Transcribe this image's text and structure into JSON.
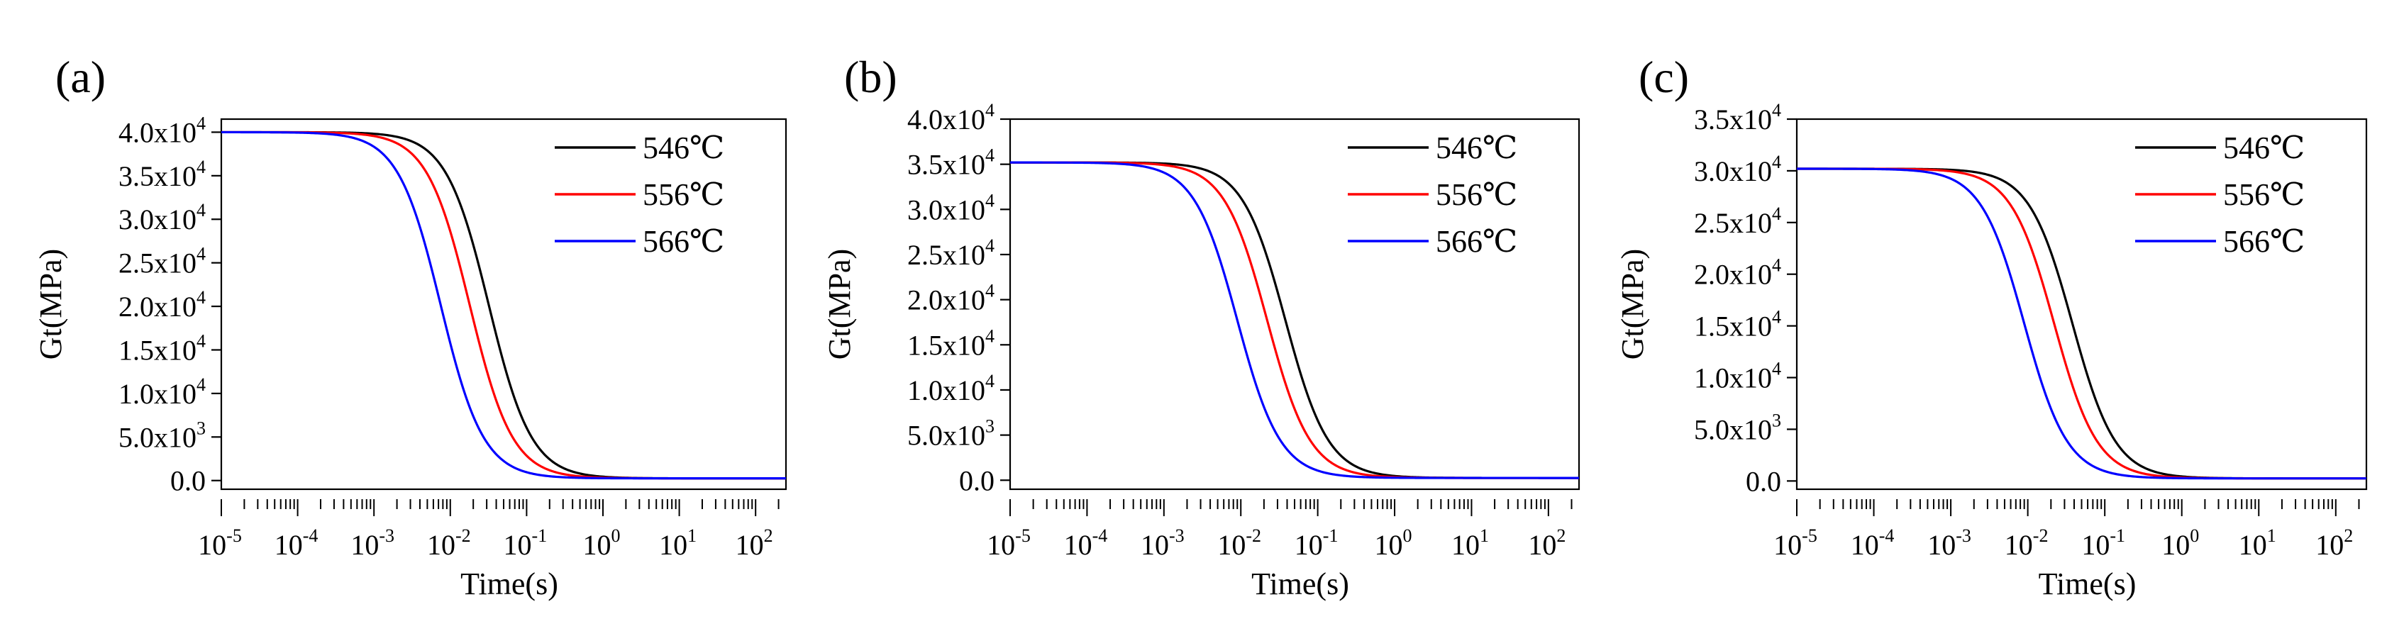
{
  "figure": {
    "panels": [
      "(a)",
      "(b)",
      "(c)"
    ]
  },
  "chart_data": [
    {
      "type": "line",
      "panel_label": "(a)",
      "xlabel": "Time(s)",
      "ylabel": "Gt(MPa)",
      "xscale": "log",
      "xlim": [
        1e-05,
        250
      ],
      "ylim": [
        -1000,
        41500
      ],
      "x_tick_labels": [
        {
          "base": "10",
          "exp": "-5",
          "value": 1e-05
        },
        {
          "base": "10",
          "exp": "-4",
          "value": 0.0001
        },
        {
          "base": "10",
          "exp": "-3",
          "value": 0.001
        },
        {
          "base": "10",
          "exp": "-2",
          "value": 0.01
        },
        {
          "base": "10",
          "exp": "-1",
          "value": 0.1
        },
        {
          "base": "10",
          "exp": "0",
          "value": 1
        },
        {
          "base": "10",
          "exp": "1",
          "value": 10
        },
        {
          "base": "10",
          "exp": "2",
          "value": 100
        }
      ],
      "y_tick_labels": [
        {
          "value": 0,
          "text": "0.0"
        },
        {
          "value": 5000,
          "mantissa": "5.0x10",
          "exp": "3"
        },
        {
          "value": 10000,
          "mantissa": "1.0x10",
          "exp": "4"
        },
        {
          "value": 15000,
          "mantissa": "1.5x10",
          "exp": "4"
        },
        {
          "value": 20000,
          "mantissa": "2.0x10",
          "exp": "4"
        },
        {
          "value": 25000,
          "mantissa": "2.5x10",
          "exp": "4"
        },
        {
          "value": 30000,
          "mantissa": "3.0x10",
          "exp": "4"
        },
        {
          "value": 35000,
          "mantissa": "3.5x10",
          "exp": "4"
        },
        {
          "value": 40000,
          "mantissa": "4.0x10",
          "exp": "4"
        }
      ],
      "legend_position": "top-right",
      "series": [
        {
          "name": "546℃",
          "color": "#000000",
          "G0": 40000,
          "t_half": 0.032,
          "steepness": 1.55,
          "G_inf": 250
        },
        {
          "name": "556℃",
          "color": "#ff0000",
          "G0": 40000,
          "t_half": 0.018,
          "steepness": 1.55,
          "G_inf": 250
        },
        {
          "name": "566℃",
          "color": "#0000ff",
          "G0": 40000,
          "t_half": 0.0075,
          "steepness": 1.55,
          "G_inf": 250
        }
      ]
    },
    {
      "type": "line",
      "panel_label": "(b)",
      "xlabel": "Time(s)",
      "ylabel": "Gt(MPa)",
      "xscale": "log",
      "xlim": [
        1e-05,
        250
      ],
      "ylim": [
        -1000,
        40000
      ],
      "x_tick_labels": [
        {
          "base": "10",
          "exp": "-5",
          "value": 1e-05
        },
        {
          "base": "10",
          "exp": "-4",
          "value": 0.0001
        },
        {
          "base": "10",
          "exp": "-3",
          "value": 0.001
        },
        {
          "base": "10",
          "exp": "-2",
          "value": 0.01
        },
        {
          "base": "10",
          "exp": "-1",
          "value": 0.1
        },
        {
          "base": "10",
          "exp": "0",
          "value": 1
        },
        {
          "base": "10",
          "exp": "1",
          "value": 10
        },
        {
          "base": "10",
          "exp": "2",
          "value": 100
        }
      ],
      "y_tick_labels": [
        {
          "value": 0,
          "text": "0.0"
        },
        {
          "value": 5000,
          "mantissa": "5.0x10",
          "exp": "3"
        },
        {
          "value": 10000,
          "mantissa": "1.0x10",
          "exp": "4"
        },
        {
          "value": 15000,
          "mantissa": "1.5x10",
          "exp": "4"
        },
        {
          "value": 20000,
          "mantissa": "2.0x10",
          "exp": "4"
        },
        {
          "value": 25000,
          "mantissa": "2.5x10",
          "exp": "4"
        },
        {
          "value": 30000,
          "mantissa": "3.0x10",
          "exp": "4"
        },
        {
          "value": 35000,
          "mantissa": "3.5x10",
          "exp": "4"
        },
        {
          "value": 40000,
          "mantissa": "4.0x10",
          "exp": "4"
        }
      ],
      "legend_position": "top-right",
      "series": [
        {
          "name": "546℃",
          "color": "#000000",
          "G0": 35200,
          "t_half": 0.038,
          "steepness": 1.55,
          "G_inf": 250
        },
        {
          "name": "556℃",
          "color": "#ff0000",
          "G0": 35200,
          "t_half": 0.022,
          "steepness": 1.55,
          "G_inf": 250
        },
        {
          "name": "566℃",
          "color": "#0000ff",
          "G0": 35200,
          "t_half": 0.009,
          "steepness": 1.55,
          "G_inf": 250
        }
      ]
    },
    {
      "type": "line",
      "panel_label": "(c)",
      "xlabel": "Time(s)",
      "ylabel": "Gt(MPa)",
      "xscale": "log",
      "xlim": [
        1e-05,
        250
      ],
      "ylim": [
        -800,
        35000
      ],
      "x_tick_labels": [
        {
          "base": "10",
          "exp": "-5",
          "value": 1e-05
        },
        {
          "base": "10",
          "exp": "-4",
          "value": 0.0001
        },
        {
          "base": "10",
          "exp": "-3",
          "value": 0.001
        },
        {
          "base": "10",
          "exp": "-2",
          "value": 0.01
        },
        {
          "base": "10",
          "exp": "-1",
          "value": 0.1
        },
        {
          "base": "10",
          "exp": "0",
          "value": 1
        },
        {
          "base": "10",
          "exp": "1",
          "value": 10
        },
        {
          "base": "10",
          "exp": "2",
          "value": 100
        }
      ],
      "y_tick_labels": [
        {
          "value": 0,
          "text": "0.0"
        },
        {
          "value": 5000,
          "mantissa": "5.0x10",
          "exp": "3"
        },
        {
          "value": 10000,
          "mantissa": "1.0x10",
          "exp": "4"
        },
        {
          "value": 15000,
          "mantissa": "1.5x10",
          "exp": "4"
        },
        {
          "value": 20000,
          "mantissa": "2.0x10",
          "exp": "4"
        },
        {
          "value": 25000,
          "mantissa": "2.5x10",
          "exp": "4"
        },
        {
          "value": 30000,
          "mantissa": "3.0x10",
          "exp": "4"
        },
        {
          "value": 35000,
          "mantissa": "3.5x10",
          "exp": "4"
        }
      ],
      "legend_position": "top-right",
      "series": [
        {
          "name": "546℃",
          "color": "#000000",
          "G0": 30200,
          "t_half": 0.038,
          "steepness": 1.55,
          "G_inf": 250
        },
        {
          "name": "556℃",
          "color": "#ff0000",
          "G0": 30200,
          "t_half": 0.022,
          "steepness": 1.55,
          "G_inf": 250
        },
        {
          "name": "566℃",
          "color": "#0000ff",
          "G0": 30200,
          "t_half": 0.009,
          "steepness": 1.55,
          "G_inf": 250
        }
      ]
    }
  ]
}
